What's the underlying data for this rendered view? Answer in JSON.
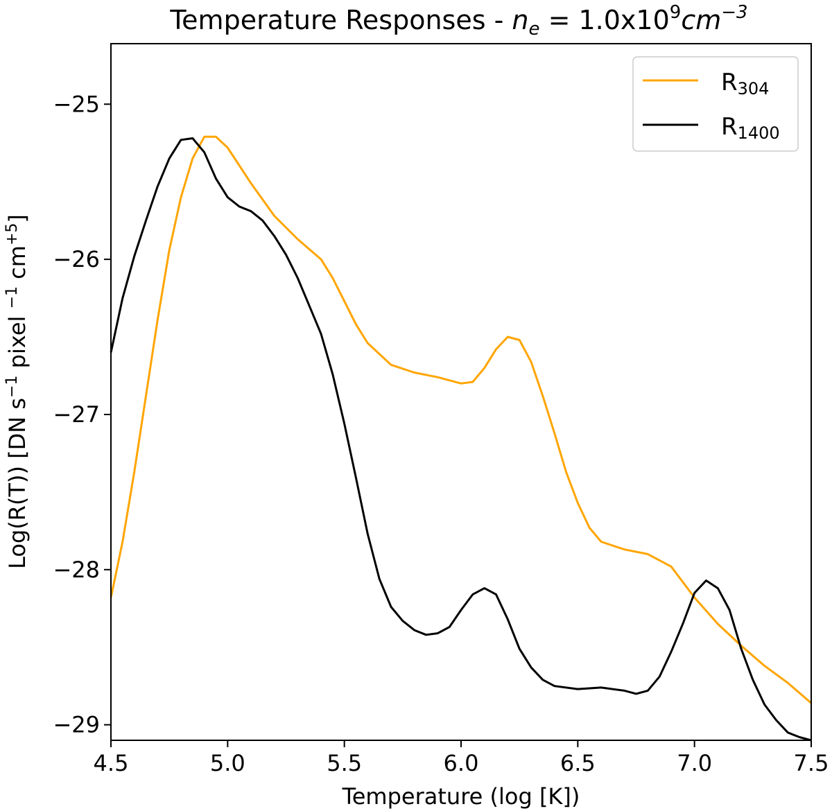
{
  "chart_data": {
    "type": "line",
    "title": {
      "prefix": "Temperature Responses - ",
      "var": "n",
      "var_sub": "e",
      "eq": " = 1.0x10",
      "exp": "9",
      "unit": "cm",
      "unit_exp": "−3"
    },
    "xlabel": "Temperature (log [K])",
    "ylabel": {
      "a": "Log(R(T)) [DN s",
      "a_sup": "−1",
      "b": " pixel ",
      "b_sup": "−1",
      "c": " cm",
      "c_sup": "+5",
      "d": "]"
    },
    "xlim": [
      4.5,
      7.5
    ],
    "ylim": [
      -29.1,
      -24.61
    ],
    "xticks": [
      "4.5",
      "5.0",
      "5.5",
      "6.0",
      "6.5",
      "7.0",
      "7.5"
    ],
    "yticks": [
      "−25",
      "−26",
      "−27",
      "−28",
      "−29"
    ],
    "grid": false,
    "legend_position": "top-right",
    "series": [
      {
        "name": "R",
        "name_sub": "304",
        "color": "#ffa500",
        "x": [
          4.5,
          4.55,
          4.6,
          4.65,
          4.7,
          4.75,
          4.8,
          4.85,
          4.9,
          4.95,
          5.0,
          5.1,
          5.2,
          5.3,
          5.4,
          5.45,
          5.5,
          5.55,
          5.6,
          5.7,
          5.8,
          5.9,
          6.0,
          6.05,
          6.1,
          6.15,
          6.2,
          6.25,
          6.3,
          6.35,
          6.4,
          6.45,
          6.5,
          6.55,
          6.6,
          6.7,
          6.8,
          6.9,
          7.0,
          7.1,
          7.2,
          7.3,
          7.4,
          7.5
        ],
        "y": [
          -28.18,
          -27.82,
          -27.37,
          -26.88,
          -26.39,
          -25.94,
          -25.6,
          -25.35,
          -25.21,
          -25.21,
          -25.28,
          -25.51,
          -25.72,
          -25.87,
          -26.0,
          -26.12,
          -26.27,
          -26.42,
          -26.54,
          -26.68,
          -26.73,
          -26.76,
          -26.8,
          -26.79,
          -26.7,
          -26.58,
          -26.5,
          -26.52,
          -26.66,
          -26.88,
          -27.12,
          -27.37,
          -27.57,
          -27.73,
          -27.82,
          -27.87,
          -27.9,
          -27.98,
          -28.18,
          -28.35,
          -28.49,
          -28.62,
          -28.73,
          -28.86
        ]
      },
      {
        "name": "R",
        "name_sub": "1400",
        "color": "#000000",
        "x": [
          4.5,
          4.55,
          4.6,
          4.65,
          4.7,
          4.75,
          4.8,
          4.85,
          4.9,
          4.95,
          5.0,
          5.05,
          5.1,
          5.15,
          5.2,
          5.25,
          5.3,
          5.35,
          5.4,
          5.45,
          5.5,
          5.55,
          5.6,
          5.65,
          5.7,
          5.75,
          5.8,
          5.85,
          5.9,
          5.95,
          6.0,
          6.05,
          6.1,
          6.15,
          6.2,
          6.25,
          6.3,
          6.35,
          6.4,
          6.5,
          6.6,
          6.7,
          6.75,
          6.8,
          6.85,
          6.9,
          6.95,
          7.0,
          7.05,
          7.1,
          7.15,
          7.2,
          7.25,
          7.3,
          7.35,
          7.4,
          7.45,
          7.5
        ],
        "y": [
          -26.6,
          -26.25,
          -25.98,
          -25.75,
          -25.53,
          -25.35,
          -25.23,
          -25.22,
          -25.31,
          -25.48,
          -25.6,
          -25.66,
          -25.69,
          -25.75,
          -25.85,
          -25.97,
          -26.12,
          -26.3,
          -26.48,
          -26.74,
          -27.06,
          -27.41,
          -27.77,
          -28.06,
          -28.24,
          -28.33,
          -28.39,
          -28.42,
          -28.41,
          -28.37,
          -28.26,
          -28.16,
          -28.12,
          -28.16,
          -28.32,
          -28.51,
          -28.63,
          -28.71,
          -28.75,
          -28.77,
          -28.76,
          -28.78,
          -28.8,
          -28.78,
          -28.69,
          -28.53,
          -28.35,
          -28.15,
          -28.07,
          -28.12,
          -28.26,
          -28.51,
          -28.71,
          -28.87,
          -28.97,
          -29.05,
          -29.08,
          -29.1
        ]
      }
    ]
  }
}
